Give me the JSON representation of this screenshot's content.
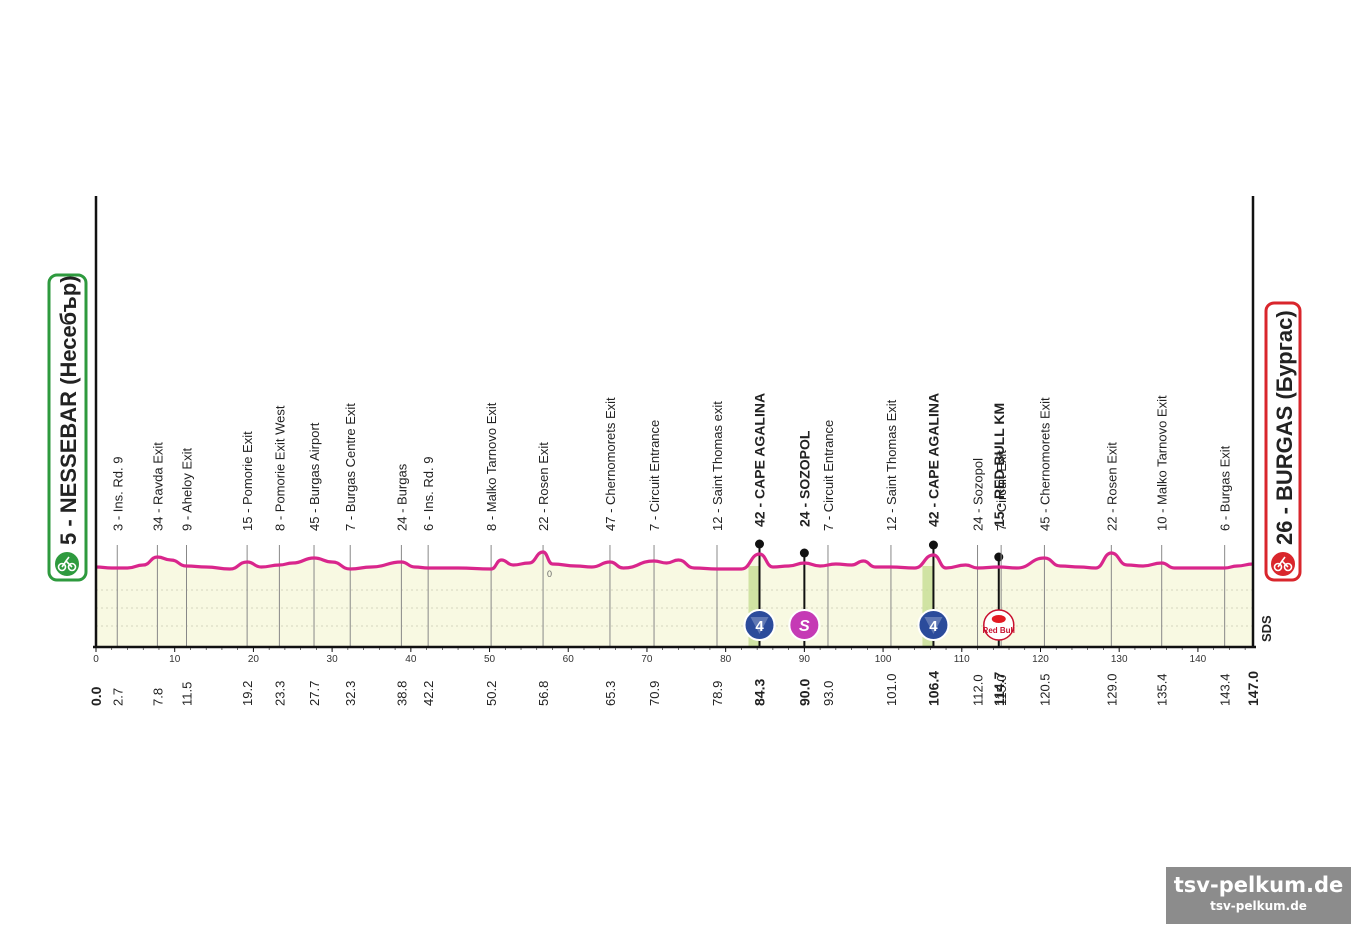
{
  "start": {
    "label": "5 - NESSEBAR (Несебър)",
    "color": "#2e9a3e"
  },
  "finish": {
    "label": "26 - BURGAS (Бургас)",
    "color": "#d9262c"
  },
  "brand_color": "#d9268c",
  "publisher": "SDS",
  "watermark": {
    "main": "tsv-pelkum.de",
    "sub": "tsv-pelkum.de"
  },
  "chart_data": {
    "type": "area",
    "title": "",
    "xlabel": "",
    "ylabel": "",
    "xlim": [
      0,
      147
    ],
    "x_ticks": [
      0,
      10,
      20,
      30,
      40,
      50,
      60,
      70,
      80,
      90,
      100,
      110,
      120,
      130,
      140
    ],
    "profile_note_label": "0",
    "km_labels": [
      "0.0",
      "2.7",
      "7.8",
      "11.5",
      "19.2",
      "23.3",
      "27.7",
      "32.3",
      "38.8",
      "42.2",
      "50.2",
      "56.8",
      "65.3",
      "70.9",
      "78.9",
      "84.3",
      "90.0",
      "93.0",
      "101.0",
      "106.4",
      "112.0",
      "114.7",
      "115.0",
      "120.5",
      "129.0",
      "135.4",
      "143.4",
      "147.0"
    ],
    "waypoints": [
      {
        "km": 2.7,
        "label": "3 - Ins. Rd. 9",
        "bold": false
      },
      {
        "km": 7.8,
        "label": "34 - Ravda Exit",
        "bold": false
      },
      {
        "km": 11.5,
        "label": "9 - Aheloy Exit",
        "bold": false
      },
      {
        "km": 19.2,
        "label": "15 - Pomorie Exit",
        "bold": false
      },
      {
        "km": 23.3,
        "label": "8 - Pomorie Exit West",
        "bold": false
      },
      {
        "km": 27.7,
        "label": "45 - Burgas Airport",
        "bold": false
      },
      {
        "km": 32.3,
        "label": "7 - Burgas Centre Exit",
        "bold": false
      },
      {
        "km": 38.8,
        "label": "24 - Burgas",
        "bold": false
      },
      {
        "km": 42.2,
        "label": "6 - Ins. Rd. 9",
        "bold": false
      },
      {
        "km": 50.2,
        "label": "8 - Malko Tarnovo Exit",
        "bold": false
      },
      {
        "km": 56.8,
        "label": "22 - Rosen Exit",
        "bold": false
      },
      {
        "km": 65.3,
        "label": "47 - Chernomorets Exit",
        "bold": false
      },
      {
        "km": 70.9,
        "label": "7 - Circuit Entrance",
        "bold": false
      },
      {
        "km": 78.9,
        "label": "12 - Saint Thomas exit",
        "bold": false
      },
      {
        "km": 84.3,
        "label": "42 - CAPE AGALINA",
        "bold": true,
        "marker": "kom",
        "badge": "4"
      },
      {
        "km": 90.0,
        "label": "24 - SOZOPOL",
        "bold": true,
        "marker": "sprint",
        "badge": "S"
      },
      {
        "km": 93.0,
        "label": "7 - Circuit Entrance",
        "bold": false
      },
      {
        "km": 101.0,
        "label": "12 - Saint Thomas Exit",
        "bold": false
      },
      {
        "km": 106.4,
        "label": "42 - CAPE AGALINA",
        "bold": true,
        "marker": "kom",
        "badge": "4"
      },
      {
        "km": 112.0,
        "label": "24 - Sozopol",
        "bold": false
      },
      {
        "km": 114.7,
        "label": "15 - RED BULL KM",
        "bold": true,
        "marker": "redbull",
        "badge": "Red Bull"
      },
      {
        "km": 115.0,
        "label": "7 - Circuit Exit",
        "bold": false
      },
      {
        "km": 120.5,
        "label": "45 - Chernomorets Exit",
        "bold": false
      },
      {
        "km": 129.0,
        "label": "22 - Rosen Exit",
        "bold": false
      },
      {
        "km": 135.4,
        "label": "10 - Malko Tarnovo Exit",
        "bold": false
      },
      {
        "km": 143.4,
        "label": "6 - Burgas Exit",
        "bold": false
      }
    ],
    "series": [
      {
        "values": [
          [
            0,
            5
          ],
          [
            2,
            4
          ],
          [
            4,
            4
          ],
          [
            6,
            7
          ],
          [
            7.8,
            15
          ],
          [
            9.5,
            12
          ],
          [
            11.5,
            6
          ],
          [
            14,
            5
          ],
          [
            17,
            3
          ],
          [
            19.2,
            10
          ],
          [
            21,
            5
          ],
          [
            23.3,
            7
          ],
          [
            25,
            9
          ],
          [
            27.7,
            14
          ],
          [
            30,
            10
          ],
          [
            32.3,
            3
          ],
          [
            35,
            5
          ],
          [
            38.8,
            10
          ],
          [
            40.5,
            5
          ],
          [
            42.2,
            4
          ],
          [
            46,
            4
          ],
          [
            50.2,
            3
          ],
          [
            51.5,
            12
          ],
          [
            53,
            7
          ],
          [
            55,
            9
          ],
          [
            56.8,
            20
          ],
          [
            58,
            8
          ],
          [
            61,
            6
          ],
          [
            63,
            5
          ],
          [
            65.3,
            10
          ],
          [
            67,
            4
          ],
          [
            70.9,
            11
          ],
          [
            72.5,
            9
          ],
          [
            74,
            12
          ],
          [
            76,
            4
          ],
          [
            78.9,
            3
          ],
          [
            82,
            3
          ],
          [
            84.3,
            18
          ],
          [
            86,
            5
          ],
          [
            88,
            6
          ],
          [
            90.0,
            9
          ],
          [
            92,
            6
          ],
          [
            94,
            8
          ],
          [
            96,
            7
          ],
          [
            97.5,
            11
          ],
          [
            99,
            5
          ],
          [
            101,
            5
          ],
          [
            104,
            4
          ],
          [
            106.4,
            17
          ],
          [
            108,
            4
          ],
          [
            110.5,
            7
          ],
          [
            112,
            4
          ],
          [
            114.7,
            5
          ],
          [
            117,
            4
          ],
          [
            120.5,
            14
          ],
          [
            122.5,
            6
          ],
          [
            125,
            5
          ],
          [
            127,
            4
          ],
          [
            129.0,
            19
          ],
          [
            131,
            7
          ],
          [
            133,
            6
          ],
          [
            135.4,
            9
          ],
          [
            137,
            4
          ],
          [
            140,
            4
          ],
          [
            143.4,
            4
          ],
          [
            145,
            6
          ],
          [
            147,
            8
          ]
        ]
      }
    ]
  }
}
